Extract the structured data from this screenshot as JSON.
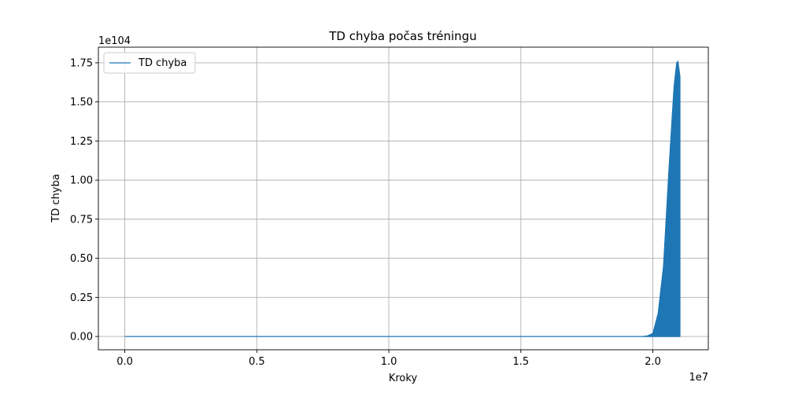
{
  "chart_data": {
    "type": "line",
    "title": "TD chyba počas tréningu",
    "xlabel": "Kroky",
    "ylabel": "TD chyba",
    "x_offset_label": "1e7",
    "y_offset_label": "1e104",
    "xlim": [
      -0.1,
      2.21
    ],
    "ylim": [
      -0.085,
      1.85
    ],
    "x_ticks": [
      0.0,
      0.5,
      1.0,
      1.5,
      2.0
    ],
    "x_tick_labels": [
      "0.0",
      "0.5",
      "1.0",
      "1.5",
      "2.0"
    ],
    "y_ticks": [
      0.0,
      0.25,
      0.5,
      0.75,
      1.0,
      1.25,
      1.5,
      1.75
    ],
    "y_tick_labels": [
      "0.00",
      "0.25",
      "0.50",
      "0.75",
      "1.00",
      "1.25",
      "1.50",
      "1.75"
    ],
    "grid": true,
    "legend_position": "top-left",
    "series": [
      {
        "name": "TD chyba",
        "color": "#1f77b4",
        "envelope_x": [
          0.0,
          1.96,
          1.98,
          2.0,
          2.02,
          2.04,
          2.06,
          2.08,
          2.09,
          2.095,
          2.1,
          2.103
        ],
        "envelope_y": [
          0.0,
          0.0,
          0.005,
          0.02,
          0.15,
          0.45,
          1.05,
          1.6,
          1.75,
          1.76,
          1.7,
          1.66
        ]
      }
    ]
  }
}
